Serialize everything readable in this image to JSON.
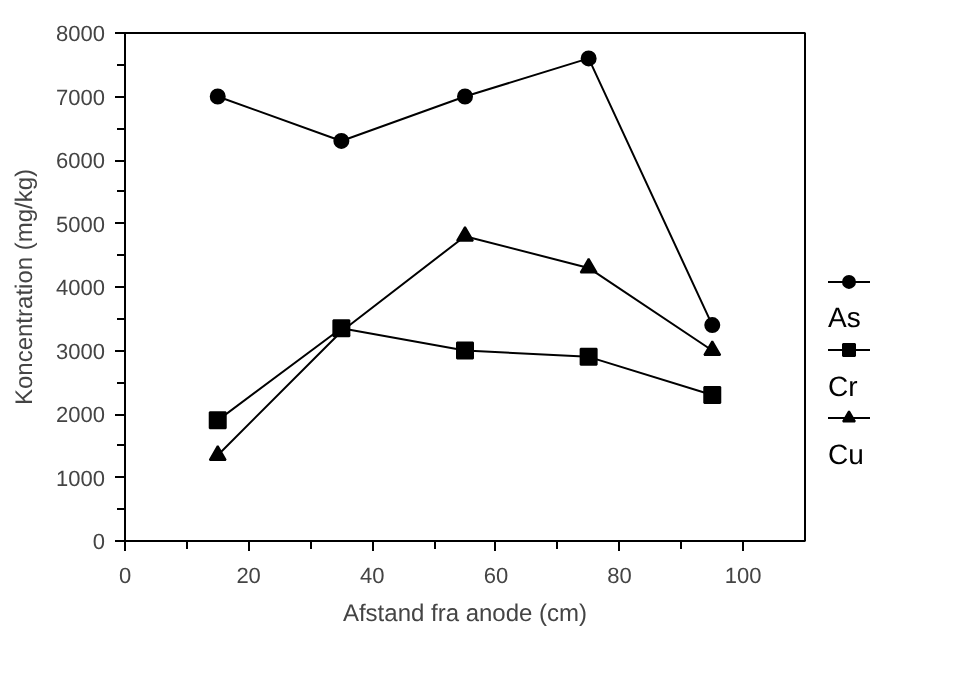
{
  "chart_data": {
    "type": "line",
    "xlabel": "Afstand fra anode (cm)",
    "ylabel": "Koncentration (mg/kg)",
    "x": [
      15,
      35,
      55,
      75,
      95
    ],
    "series": [
      {
        "name": "As",
        "color": "#000000",
        "marker": "circle",
        "values": [
          7000,
          6300,
          7000,
          7600,
          3400
        ]
      },
      {
        "name": "Cr",
        "color": "#000000",
        "marker": "square",
        "values": [
          1900,
          3350,
          3000,
          2900,
          2300
        ]
      },
      {
        "name": "Cu",
        "color": "#000000",
        "marker": "triangle",
        "values": [
          1350,
          3300,
          4800,
          4300,
          3000
        ]
      }
    ],
    "xlim": [
      0,
      110
    ],
    "xticks": [
      0,
      20,
      40,
      60,
      80,
      100
    ],
    "ylim": [
      0,
      8000
    ],
    "yticks": [
      0,
      1000,
      2000,
      3000,
      4000,
      5000,
      6000,
      7000,
      8000
    ],
    "grid": false,
    "legend": "right",
    "line_style": "solid"
  }
}
